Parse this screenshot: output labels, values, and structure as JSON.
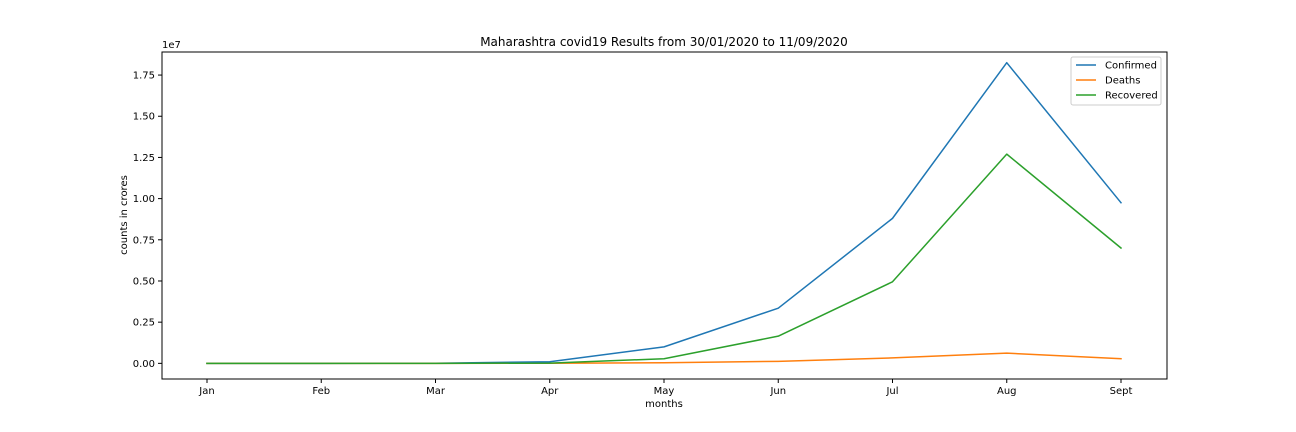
{
  "chart_data": {
    "type": "line",
    "title": "Maharashtra covid19 Results from 30/01/2020 to 11/09/2020",
    "xlabel": "months",
    "ylabel": "counts in crores",
    "y_offset_label": "1e7",
    "categories": [
      "Jan",
      "Feb",
      "Mar",
      "Apr",
      "May",
      "Jun",
      "Jul",
      "Aug",
      "Sept"
    ],
    "ylim": [
      -950000,
      18900000
    ],
    "yticks": [
      0,
      2500000,
      5000000,
      7500000,
      10000000,
      12500000,
      15000000,
      17500000
    ],
    "ytick_labels": [
      "0.00",
      "0.25",
      "0.50",
      "0.75",
      "1.00",
      "1.25",
      "1.50",
      "1.75"
    ],
    "grid": false,
    "legend_position": "top-right",
    "series": [
      {
        "name": "Confirmed",
        "color": "#1f77b4",
        "values": [
          0,
          0,
          5000,
          100000,
          1000000,
          3350000,
          8800000,
          18250000,
          9750000
        ]
      },
      {
        "name": "Deaths",
        "color": "#ff7f0e",
        "values": [
          0,
          0,
          200,
          5000,
          40000,
          120000,
          330000,
          620000,
          280000
        ]
      },
      {
        "name": "Recovered",
        "color": "#2ca02c",
        "values": [
          0,
          0,
          500,
          15000,
          280000,
          1650000,
          4950000,
          12700000,
          7000000
        ]
      }
    ]
  }
}
